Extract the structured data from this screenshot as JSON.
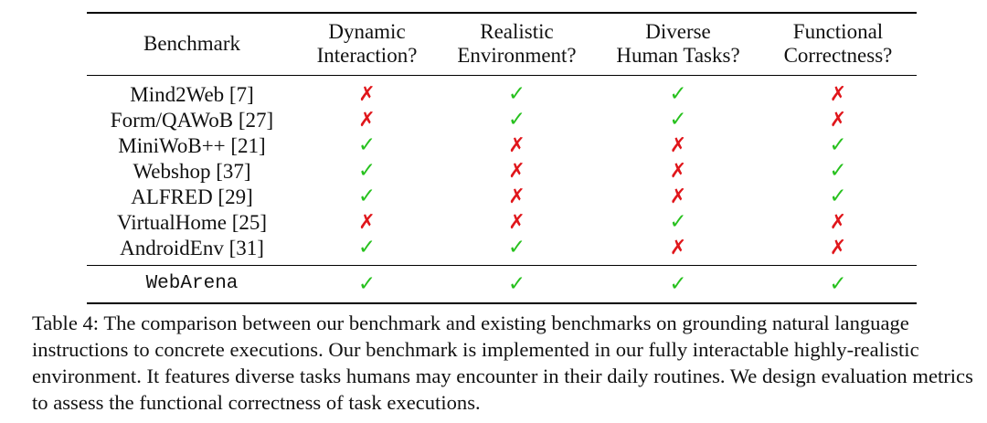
{
  "table": {
    "headers": {
      "benchmark": "Benchmark",
      "dynamic": [
        "Dynamic",
        "Interaction?"
      ],
      "realistic": [
        "Realistic",
        "Environment?"
      ],
      "diverse": [
        "Diverse",
        "Human Tasks?"
      ],
      "functional": [
        "Functional",
        "Correctness?"
      ]
    },
    "rows": [
      {
        "name": "Mind2Web [7]",
        "dynamic": "✗",
        "realistic": "✓",
        "diverse": "✓",
        "functional": "✗"
      },
      {
        "name": "Form/QAWoB [27]",
        "dynamic": "✗",
        "realistic": "✓",
        "diverse": "✓",
        "functional": "✗"
      },
      {
        "name": "MiniWoB++ [21]",
        "dynamic": "✓",
        "realistic": "✗",
        "diverse": "✗",
        "functional": "✓"
      },
      {
        "name": "Webshop [37]",
        "dynamic": "✓",
        "realistic": "✗",
        "diverse": "✗",
        "functional": "✓"
      },
      {
        "name": "ALFRED [29]",
        "dynamic": "✓",
        "realistic": "✗",
        "diverse": "✗",
        "functional": "✓"
      },
      {
        "name": "VirtualHome [25]",
        "dynamic": "✗",
        "realistic": "✗",
        "diverse": "✓",
        "functional": "✗"
      },
      {
        "name": "AndroidEnv [31]",
        "dynamic": "✓",
        "realistic": "✓",
        "diverse": "✗",
        "functional": "✗"
      }
    ],
    "final_row": {
      "name": "WebArena",
      "dynamic": "✓",
      "realistic": "✓",
      "diverse": "✓",
      "functional": "✓"
    }
  },
  "colors": {
    "check": "#27c11e",
    "cross": "#e0161b"
  },
  "caption": "Table 4: The comparison between our benchmark and existing benchmarks on grounding natural language instructions to concrete executions. Our benchmark is implemented in our fully interactable highly-realistic  environment. It features diverse tasks humans may encounter in their daily routines. We design evaluation metrics to assess the functional correctness of task executions."
}
